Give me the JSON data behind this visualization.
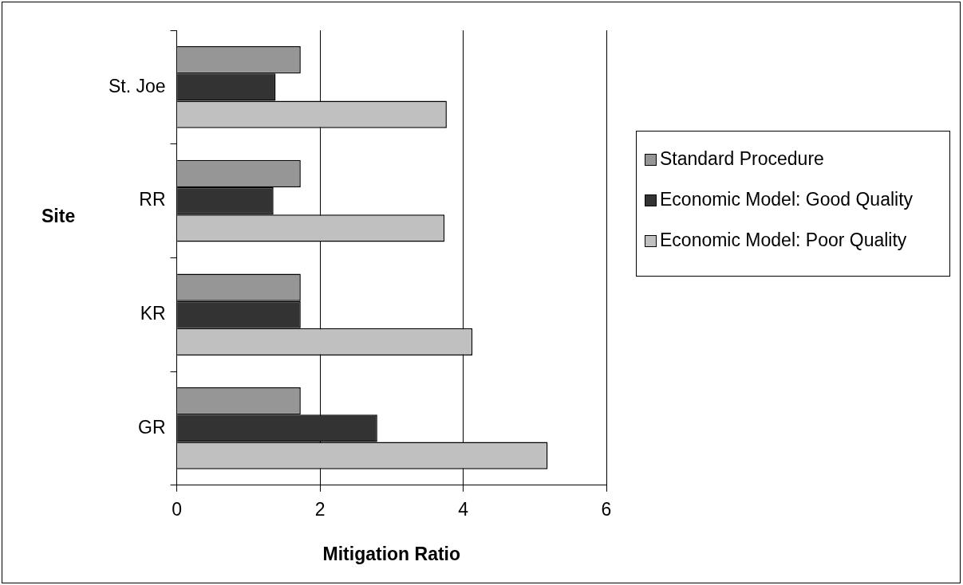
{
  "chart_data": {
    "type": "bar",
    "orientation": "horizontal",
    "xlabel": "Mitigation Ratio",
    "ylabel": "Site",
    "categories": [
      "St. Joe",
      "RR",
      "KR",
      "GR"
    ],
    "series": [
      {
        "name": "Standard Procedure",
        "color": "#969696",
        "values": [
          1.73,
          1.73,
          1.73,
          1.73
        ]
      },
      {
        "name": "Economic Model: Good Quality",
        "color": "#333333",
        "values": [
          1.38,
          1.35,
          1.73,
          2.8
        ]
      },
      {
        "name": "Economic Model: Poor Quality",
        "color": "#c0c0c0",
        "values": [
          3.77,
          3.74,
          4.13,
          5.18
        ]
      }
    ],
    "xlim": [
      0,
      6
    ],
    "xticks": [
      0,
      2,
      4,
      6
    ],
    "grid": "x",
    "legend": "right"
  }
}
